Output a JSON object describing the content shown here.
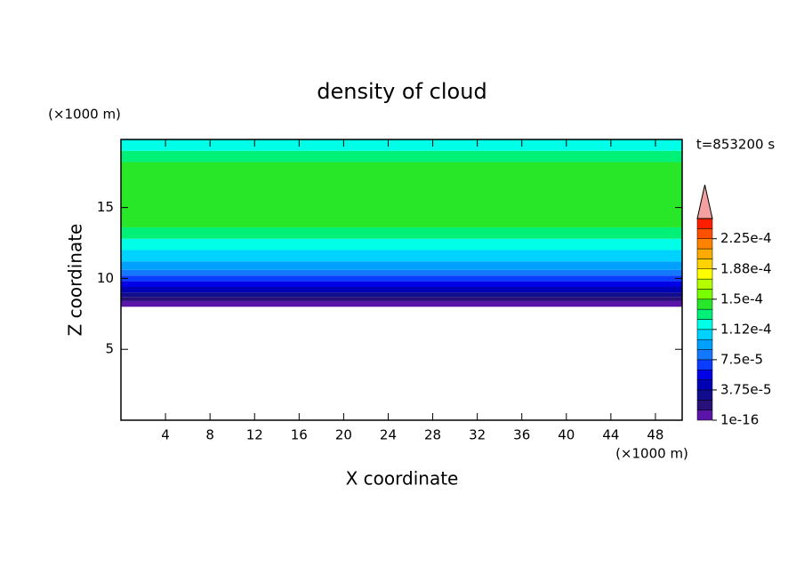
{
  "chart_data": {
    "type": "contour_profile",
    "title": "density of cloud",
    "x_label": "X coordinate",
    "y_label": "Z coordinate",
    "x_unit": "(×1000 m)",
    "y_unit": "(×1000 m)",
    "time_label": "t=853200 s",
    "xlim": [
      0,
      50.4
    ],
    "xticks": [
      4,
      8,
      12,
      16,
      20,
      24,
      28,
      32,
      36,
      40,
      44,
      48
    ],
    "ylim": [
      0,
      19.8
    ],
    "yticks": [
      5,
      10,
      15
    ],
    "z": [
      8.0,
      8.4,
      8.7,
      9.0,
      9.4,
      9.8,
      10.2,
      10.6,
      11.2,
      12.0,
      12.8,
      13.6,
      18.2,
      19.0,
      19.8
    ],
    "values": [
      1e-05,
      2e-05,
      3e-05,
      4.5e-05,
      5.5e-05,
      6.5e-05,
      7.8e-05,
      9e-05,
      0.0001,
      0.000115,
      0.00013,
      0.00014,
      0.00013,
      0.000115
    ],
    "levels": [
      1e-16,
      1.25e-05,
      2.5e-05,
      3.75e-05,
      5e-05,
      6.25e-05,
      7.5e-05,
      8.75e-05,
      0.0001,
      0.0001125,
      0.000125,
      0.0001375,
      0.00015,
      0.0001625,
      0.000175,
      0.0001875,
      0.0002,
      0.0002125,
      0.000225,
      0.0002375,
      0.00025
    ],
    "colors": [
      "#5a14a8",
      "#28107a",
      "#100c8c",
      "#0000b4",
      "#0000e6",
      "#0a3cff",
      "#1478ff",
      "#00a0ff",
      "#00d2ff",
      "#00ffe6",
      "#00f078",
      "#28e628",
      "#78ff00",
      "#b4ff00",
      "#ffff00",
      "#ffd200",
      "#ffaa00",
      "#ff8200",
      "#ff5000",
      "#ff1e00"
    ],
    "extend_color": "#f5a0a0",
    "colorbar_ticks": [
      {
        "value": 1e-16,
        "label": "1e-16"
      },
      {
        "value": 3.75e-05,
        "label": "3.75e-5"
      },
      {
        "value": 7.5e-05,
        "label": "7.5e-5"
      },
      {
        "value": 0.0001125,
        "label": "1.12e-4"
      },
      {
        "value": 0.00015,
        "label": "1.5e-4"
      },
      {
        "value": 0.0001875,
        "label": "1.88e-4"
      },
      {
        "value": 0.000225,
        "label": "2.25e-4"
      }
    ]
  }
}
